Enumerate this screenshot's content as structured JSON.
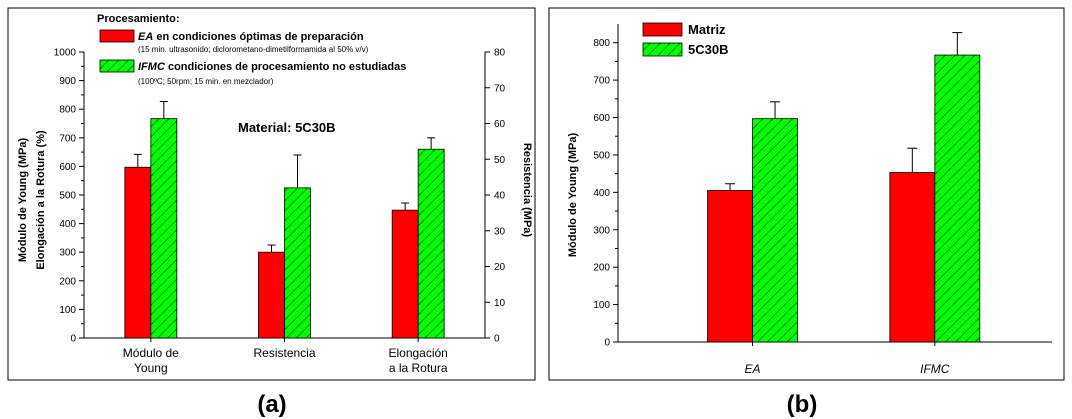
{
  "colors": {
    "matriz": "#ff0000",
    "nanocomposite": "#00ff00",
    "hatch": "#006600"
  },
  "chart_data": [
    {
      "type": "bar",
      "panel_label": "(a)",
      "legend_title": "Procesamiento:",
      "annotation": "Material: 5C30B",
      "categories": [
        "Módulo de Young",
        "Resistencia",
        "Elongación a la Rotura"
      ],
      "category_lines": [
        [
          "Módulo de",
          "Young"
        ],
        [
          "Resistencia"
        ],
        [
          "Elongación",
          "a la Rotura"
        ]
      ],
      "series": [
        {
          "name_italic": "EA",
          "name_rest": " en condiciones óptimas de preparación",
          "subtitle": "(15 min. ultrasonido; diclorometano-dimetilformamida al 50% v/v)",
          "color": "#ff0000",
          "hatched": false,
          "values": [
            597,
            300,
            447
          ],
          "errors": [
            45,
            25,
            25
          ]
        },
        {
          "name_italic": "IFMC",
          "name_rest": " condiciones de procesamiento no estudiadas",
          "subtitle": "(100ºC; 50rpm; 15 min. en mezclador)",
          "color": "#00ff00",
          "hatched": true,
          "values": [
            767,
            525,
            660
          ],
          "errors": [
            60,
            115,
            40
          ]
        }
      ],
      "ylabel_left": [
        "Módulo de Young (MPa)",
        "Elongación a la Rotura (%)"
      ],
      "ylabel_right": "Resistencia (MPa)",
      "ylim": [
        0,
        1000
      ],
      "yticks": [
        0,
        100,
        200,
        300,
        400,
        500,
        600,
        700,
        800,
        900,
        1000
      ],
      "ylim_right": [
        0,
        80
      ],
      "yticks_right": [
        0,
        10,
        20,
        30,
        40,
        50,
        60,
        70,
        80
      ]
    },
    {
      "type": "bar",
      "panel_label": "(b)",
      "categories": [
        "EA",
        "IFMC"
      ],
      "series": [
        {
          "name": "Matriz",
          "color": "#ff0000",
          "hatched": false,
          "values": [
            405,
            453
          ],
          "errors": [
            18,
            65
          ]
        },
        {
          "name": "5C30B",
          "color": "#00ff00",
          "hatched": true,
          "values": [
            597,
            767
          ],
          "errors": [
            45,
            60
          ]
        }
      ],
      "ylabel": "Módulo de Young (MPa)",
      "ylim": [
        0,
        850
      ],
      "yticks": [
        0,
        100,
        200,
        300,
        400,
        500,
        600,
        700,
        800
      ]
    }
  ]
}
